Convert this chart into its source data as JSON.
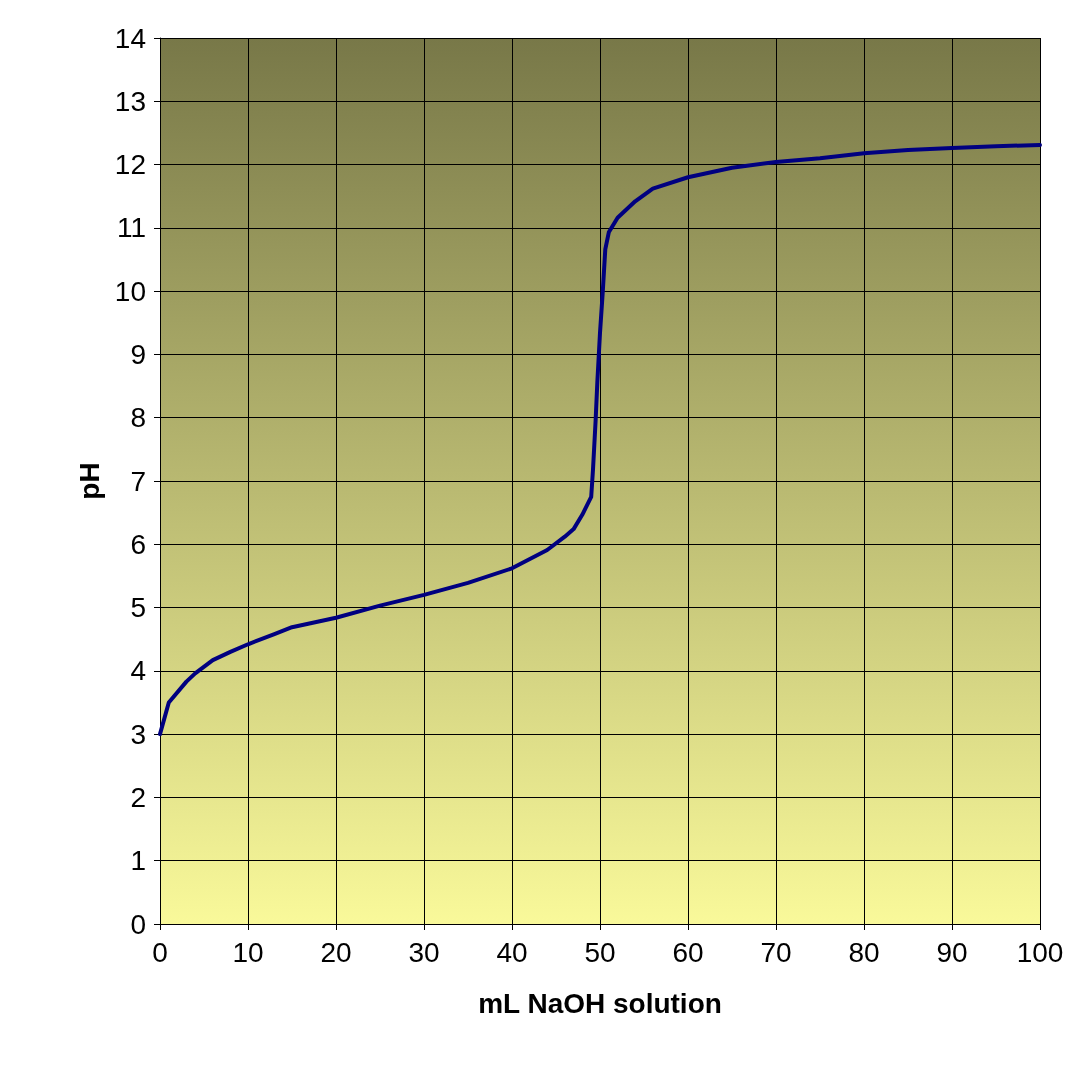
{
  "chart_data": {
    "type": "line",
    "xlabel": "mL NaOH solution",
    "ylabel": "pH",
    "xlim": [
      0,
      100
    ],
    "xticks": [
      0,
      10,
      20,
      30,
      40,
      50,
      60,
      70,
      80,
      90,
      100
    ],
    "ylim": [
      0,
      14
    ],
    "yticks": [
      0,
      1,
      2,
      3,
      4,
      5,
      6,
      7,
      8,
      9,
      10,
      11,
      12,
      13,
      14
    ],
    "grid": true,
    "marker": "none",
    "line_style": "solid",
    "series": [
      {
        "color": "#000080",
        "x": [
          0,
          1,
          3,
          4,
          6,
          8,
          10,
          13,
          15,
          20,
          25,
          30,
          35,
          40,
          44,
          46,
          47,
          48,
          49,
          49.2,
          49.5,
          49.7,
          50,
          50.3,
          50.6,
          51,
          52,
          54,
          56,
          60,
          65,
          70,
          75,
          80,
          85,
          90,
          95,
          100
        ],
        "values": [
          3.0,
          3.5,
          3.83,
          3.96,
          4.17,
          4.3,
          4.42,
          4.58,
          4.69,
          4.84,
          5.03,
          5.2,
          5.39,
          5.62,
          5.91,
          6.12,
          6.24,
          6.47,
          6.75,
          7.17,
          7.95,
          8.57,
          9.34,
          9.96,
          10.66,
          10.93,
          11.16,
          11.42,
          11.62,
          11.8,
          11.95,
          12.04,
          12.1,
          12.18,
          12.23,
          12.26,
          12.29,
          12.31
        ]
      }
    ]
  }
}
